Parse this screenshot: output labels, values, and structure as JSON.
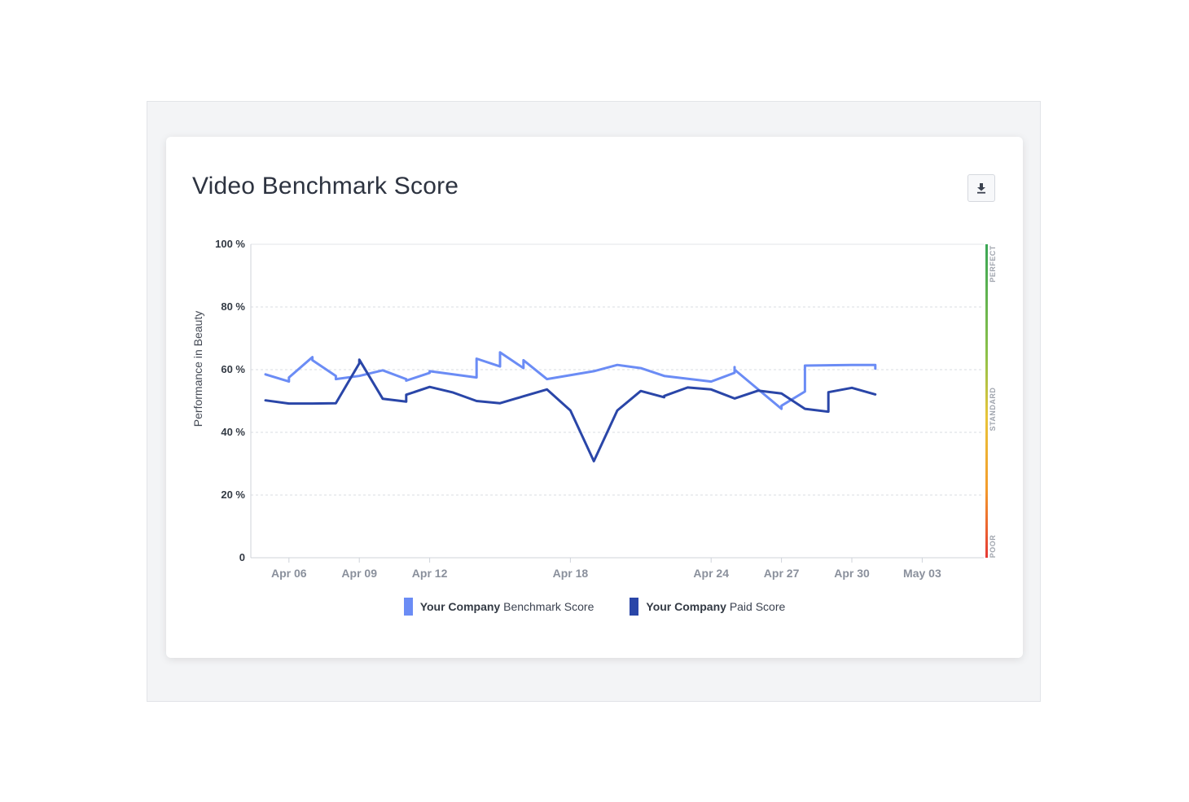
{
  "card": {
    "title": "Video Benchmark Score"
  },
  "icons": {
    "download": "download-icon"
  },
  "chart_data": {
    "type": "line",
    "title": "Video Benchmark Score",
    "xlabel": "",
    "ylabel": "Performance in Beauty",
    "ylim": [
      0,
      100
    ],
    "x_range": [
      "2020-04-05",
      "2020-05-05"
    ],
    "yticks": [
      {
        "value": 0,
        "label": "0"
      },
      {
        "value": 20,
        "label": "20 %"
      },
      {
        "value": 40,
        "label": "40 %"
      },
      {
        "value": 60,
        "label": "60 %"
      },
      {
        "value": 80,
        "label": "80 %"
      },
      {
        "value": 100,
        "label": "100 %"
      }
    ],
    "xticks": [
      {
        "date": "2020-04-06",
        "label": "Apr 06"
      },
      {
        "date": "2020-04-09",
        "label": "Apr 09"
      },
      {
        "date": "2020-04-12",
        "label": "Apr 12"
      },
      {
        "date": "2020-04-18",
        "label": "Apr 18"
      },
      {
        "date": "2020-04-24",
        "label": "Apr 24"
      },
      {
        "date": "2020-04-27",
        "label": "Apr 27"
      },
      {
        "date": "2020-04-30",
        "label": "Apr 30"
      },
      {
        "date": "2020-05-03",
        "label": "May 03"
      }
    ],
    "grid": true,
    "legend_position": "bottom",
    "bands": [
      {
        "label": "PERFECT"
      },
      {
        "label": "STANDARD"
      },
      {
        "label": "POOR"
      }
    ],
    "band_colors": {
      "top": "#3aa655",
      "mid": "#e8c43a",
      "bottom": "#e53935"
    },
    "series": [
      {
        "legend_bold": "Your Company",
        "legend_rest": "Benchmark Score",
        "color": "#6b8cf5",
        "points": [
          [
            "2020-04-05",
            58.5
          ],
          [
            "2020-04-06",
            56.2
          ],
          [
            "2020-04-06",
            57.5
          ],
          [
            "2020-04-07",
            64.0
          ],
          [
            "2020-04-07",
            63.0
          ],
          [
            "2020-04-08",
            58.0
          ],
          [
            "2020-04-08",
            57.0
          ],
          [
            "2020-04-09",
            58.0
          ],
          [
            "2020-04-10",
            59.8
          ],
          [
            "2020-04-11",
            57.0
          ],
          [
            "2020-04-11",
            56.5
          ],
          [
            "2020-04-12",
            59.0
          ],
          [
            "2020-04-12",
            59.5
          ],
          [
            "2020-04-14",
            57.5
          ],
          [
            "2020-04-14",
            63.5
          ],
          [
            "2020-04-15",
            61.0
          ],
          [
            "2020-04-15",
            65.5
          ],
          [
            "2020-04-16",
            60.5
          ],
          [
            "2020-04-16",
            63.0
          ],
          [
            "2020-04-17",
            57.0
          ],
          [
            "2020-04-19",
            59.5
          ],
          [
            "2020-04-20",
            61.5
          ],
          [
            "2020-04-21",
            60.5
          ],
          [
            "2020-04-22",
            58.0
          ],
          [
            "2020-04-24",
            56.2
          ],
          [
            "2020-04-25",
            59.0
          ],
          [
            "2020-04-25",
            60.8
          ],
          [
            "2020-04-25",
            60.0
          ],
          [
            "2020-04-27",
            47.5
          ],
          [
            "2020-04-27",
            48.5
          ],
          [
            "2020-04-28",
            53.0
          ],
          [
            "2020-04-28",
            61.3
          ],
          [
            "2020-04-30",
            61.5
          ],
          [
            "2020-05-01",
            61.5
          ],
          [
            "2020-05-01",
            60.3
          ]
        ]
      },
      {
        "legend_bold": "Your Company",
        "legend_rest": "Paid Score",
        "color": "#2a46a8",
        "points": [
          [
            "2020-04-05",
            50.2
          ],
          [
            "2020-04-06",
            49.2
          ],
          [
            "2020-04-07",
            49.2
          ],
          [
            "2020-04-08",
            49.3
          ],
          [
            "2020-04-09",
            62.0
          ],
          [
            "2020-04-09",
            63.2
          ],
          [
            "2020-04-10",
            50.7
          ],
          [
            "2020-04-11",
            49.8
          ],
          [
            "2020-04-11",
            52.0
          ],
          [
            "2020-04-12",
            54.5
          ],
          [
            "2020-04-13",
            52.7
          ],
          [
            "2020-04-14",
            50.0
          ],
          [
            "2020-04-15",
            49.3
          ],
          [
            "2020-04-16",
            51.5
          ],
          [
            "2020-04-17",
            53.7
          ],
          [
            "2020-04-18",
            47.0
          ],
          [
            "2020-04-19",
            30.8
          ],
          [
            "2020-04-20",
            47.0
          ],
          [
            "2020-04-21",
            53.2
          ],
          [
            "2020-04-22",
            51.2
          ],
          [
            "2020-04-22",
            51.6
          ],
          [
            "2020-04-23",
            54.3
          ],
          [
            "2020-04-24",
            53.7
          ],
          [
            "2020-04-25",
            50.8
          ],
          [
            "2020-04-26",
            53.3
          ],
          [
            "2020-04-27",
            52.4
          ],
          [
            "2020-04-28",
            47.5
          ],
          [
            "2020-04-29",
            46.6
          ],
          [
            "2020-04-29",
            52.8
          ],
          [
            "2020-04-30",
            54.2
          ],
          [
            "2020-05-01",
            52.1
          ]
        ]
      }
    ]
  }
}
